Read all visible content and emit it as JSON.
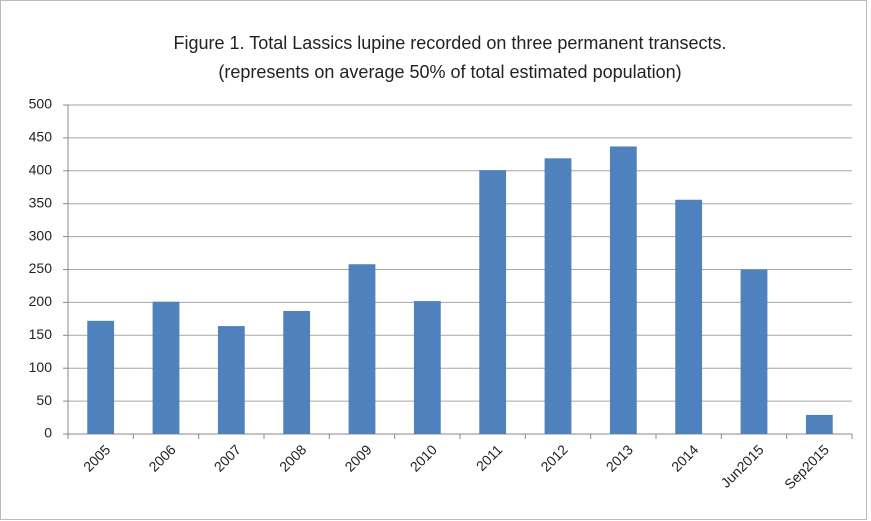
{
  "chart_data": {
    "type": "bar",
    "title": "Figure 1.  Total Lassics lupine recorded on three permanent transects.",
    "subtitle": "(represents on average 50% of total estimated population)",
    "categories": [
      "2005",
      "2006",
      "2007",
      "2008",
      "2009",
      "2010",
      "2011",
      "2012",
      "2013",
      "2014",
      "Jun2015",
      "Sep2015"
    ],
    "values": [
      172,
      201,
      164,
      187,
      258,
      202,
      401,
      419,
      437,
      356,
      250,
      29
    ],
    "color": "#4f81bd",
    "ylim": [
      0,
      500
    ],
    "yticks": [
      0,
      50,
      100,
      150,
      200,
      250,
      300,
      350,
      400,
      450,
      500
    ],
    "grid": true
  }
}
